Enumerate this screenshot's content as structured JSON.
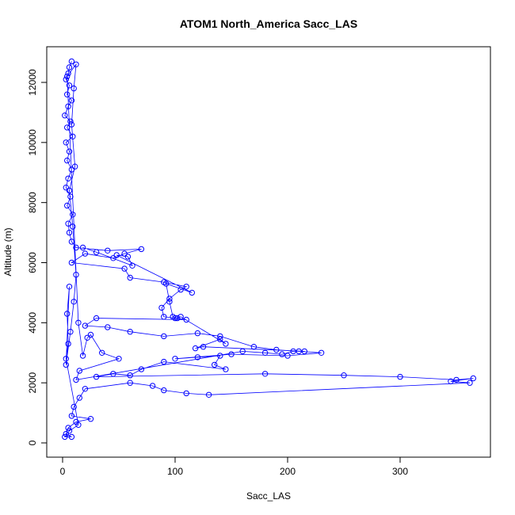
{
  "chart_data": {
    "type": "scatter",
    "title": "ATOM1 North_America Sacc_LAS",
    "xlabel": "Sacc_LAS",
    "ylabel": "Altitude (m)",
    "xlim": [
      0,
      370
    ],
    "ylim": [
      0,
      12800
    ],
    "x_ticks": [
      0,
      100,
      200,
      300
    ],
    "y_ticks": [
      0,
      2000,
      4000,
      6000,
      8000,
      10000,
      12000
    ],
    "grid": false,
    "legend": "none",
    "marker": "open-circle",
    "colors": {
      "series": "#0000ff",
      "axes": "#000000"
    },
    "series": [
      {
        "points": [
          [
            8,
            12700
          ],
          [
            6,
            12500
          ],
          [
            5,
            12300
          ],
          [
            3,
            12100
          ],
          [
            6,
            11900
          ],
          [
            4,
            11600
          ],
          [
            8,
            11400
          ],
          [
            5,
            11200
          ],
          [
            2,
            10900
          ],
          [
            7,
            10700
          ],
          [
            4,
            10500
          ],
          [
            9,
            10200
          ],
          [
            3,
            10000
          ],
          [
            6,
            9700
          ],
          [
            4,
            9400
          ],
          [
            8,
            9100
          ],
          [
            5,
            8800
          ],
          [
            3,
            8500
          ],
          [
            7,
            8200
          ],
          [
            4,
            7900
          ],
          [
            9,
            7600
          ],
          [
            5,
            7300
          ],
          [
            6,
            7000
          ],
          [
            8,
            6700
          ],
          [
            12,
            6500
          ],
          [
            40,
            6400
          ],
          [
            70,
            6450
          ],
          [
            55,
            6300
          ],
          [
            45,
            6150
          ],
          [
            20,
            6300
          ],
          [
            8,
            6000
          ],
          [
            55,
            5800
          ],
          [
            60,
            5500
          ],
          [
            90,
            5350
          ],
          [
            110,
            5200
          ],
          [
            105,
            5100
          ],
          [
            95,
            4800
          ],
          [
            88,
            4500
          ],
          [
            90,
            4200
          ],
          [
            100,
            4150
          ],
          [
            110,
            4100
          ],
          [
            30,
            4150
          ],
          [
            20,
            3900
          ],
          [
            40,
            3850
          ],
          [
            60,
            3700
          ],
          [
            90,
            3550
          ],
          [
            120,
            3650
          ],
          [
            140,
            3550
          ],
          [
            170,
            3200
          ],
          [
            190,
            3100
          ],
          [
            210,
            3050
          ],
          [
            230,
            3000
          ],
          [
            200,
            2900
          ],
          [
            150,
            2950
          ],
          [
            100,
            2800
          ],
          [
            120,
            2850
          ],
          [
            140,
            2900
          ],
          [
            135,
            2600
          ],
          [
            145,
            2450
          ],
          [
            90,
            2700
          ],
          [
            70,
            2450
          ],
          [
            60,
            2250
          ],
          [
            45,
            2300
          ],
          [
            30,
            2200
          ],
          [
            180,
            2300
          ],
          [
            250,
            2250
          ],
          [
            300,
            2200
          ],
          [
            350,
            2100
          ],
          [
            365,
            2150
          ],
          [
            345,
            2050
          ],
          [
            362,
            2000
          ],
          [
            130,
            1600
          ],
          [
            110,
            1650
          ],
          [
            90,
            1750
          ],
          [
            80,
            1900
          ],
          [
            60,
            2000
          ],
          [
            20,
            1800
          ],
          [
            15,
            1500
          ],
          [
            10,
            1200
          ],
          [
            8,
            900
          ],
          [
            25,
            800
          ],
          [
            12,
            700
          ],
          [
            5,
            500
          ],
          [
            3,
            300
          ],
          [
            8,
            200
          ],
          [
            2,
            200
          ],
          [
            6,
            400
          ],
          [
            14,
            600
          ],
          [
            3,
            2800
          ],
          [
            5,
            3300
          ],
          [
            4,
            4300
          ],
          [
            6,
            5200
          ],
          [
            3,
            2600
          ],
          [
            7,
            3700
          ],
          [
            10,
            4700
          ],
          [
            12,
            5600
          ],
          [
            9,
            7200
          ],
          [
            6,
            8400
          ],
          [
            11,
            9200
          ],
          [
            8,
            10600
          ],
          [
            10,
            11800
          ],
          [
            12,
            12600
          ],
          [
            4,
            12200
          ],
          [
            14,
            4000
          ],
          [
            18,
            2900
          ],
          [
            22,
            3500
          ],
          [
            25,
            3600
          ],
          [
            35,
            3000
          ],
          [
            50,
            2800
          ],
          [
            15,
            2400
          ],
          [
            12,
            2100
          ],
          [
            160,
            3050
          ],
          [
            180,
            3000
          ],
          [
            195,
            2950
          ],
          [
            205,
            3050
          ],
          [
            215,
            3050
          ],
          [
            125,
            3200
          ],
          [
            118,
            3150
          ],
          [
            140,
            3450
          ],
          [
            145,
            3300
          ],
          [
            105,
            4200
          ],
          [
            102,
            4150
          ],
          [
            98,
            4200
          ],
          [
            95,
            4700
          ],
          [
            92,
            5300
          ],
          [
            115,
            5000
          ],
          [
            48,
            6250
          ],
          [
            58,
            6200
          ],
          [
            62,
            5900
          ],
          [
            30,
            6350
          ],
          [
            18,
            6500
          ]
        ]
      }
    ]
  }
}
